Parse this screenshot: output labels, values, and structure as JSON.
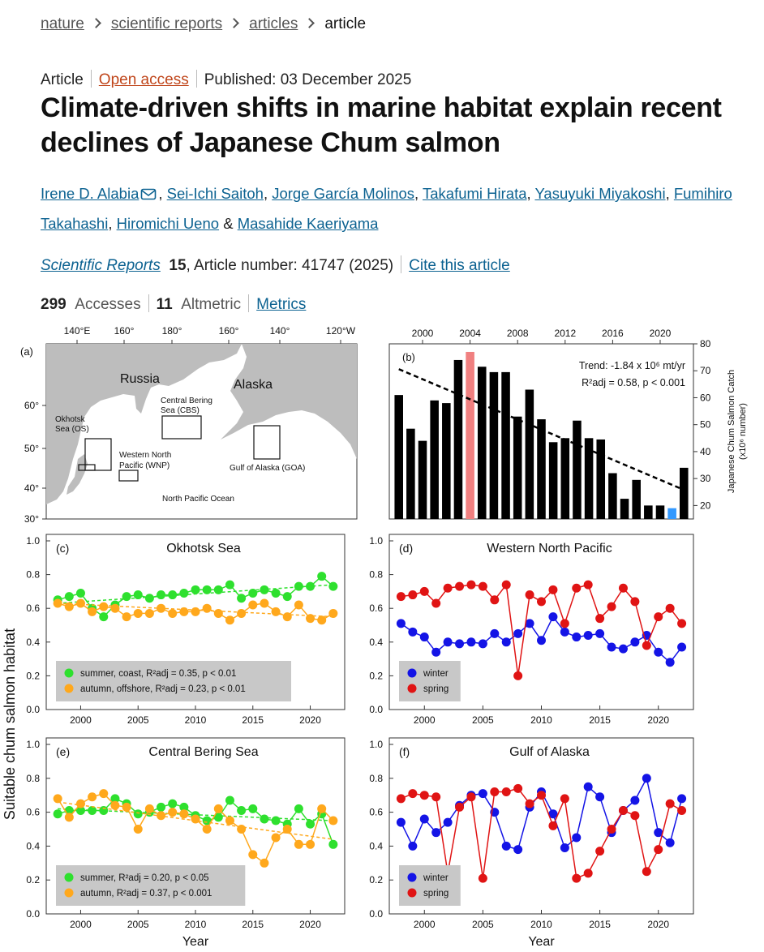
{
  "breadcrumb": [
    "nature",
    "scientific reports",
    "articles",
    "article"
  ],
  "article_meta": {
    "type": "Article",
    "access": "Open access",
    "published": "Published: 03 December 2025"
  },
  "title": "Climate-driven shifts in marine habitat explain recent declines of Japanese Chum salmon",
  "authors": [
    "Irene D. Alabia",
    "Sei-Ichi Saitoh",
    "Jorge García Molinos",
    "Takafumi Hirata",
    "Yasuyuki Miyakoshi",
    "Fumihiro Takahashi",
    "Hiromichi Ueno",
    "Masahide Kaeriyama"
  ],
  "separators": {
    "list": ",",
    "last": "&"
  },
  "citation": {
    "journal": "Scientific Reports",
    "volume": "15",
    "article_number": ", Article number: 41747 (2025)",
    "cite": "Cite this article"
  },
  "metrics": {
    "accesses": "299",
    "accesses_label": "Accesses",
    "altmetric": "11",
    "altmetric_label": "Altmetric",
    "link": "Metrics"
  },
  "figure": {
    "ylabel": "Suitable chum salmon habitat",
    "map": {
      "panel": "(a)",
      "xticks": [
        "140°E",
        "160°",
        "180°",
        "160°",
        "140°",
        "120°W"
      ],
      "yticks": [
        "60°",
        "50°",
        "40°",
        "30°"
      ],
      "labels": {
        "russia": "Russia",
        "alaska": "Alaska",
        "os": [
          "Okhotsk",
          "Sea (OS)"
        ],
        "cbs": [
          "Central Bering",
          "Sea (CBS)"
        ],
        "wnp": [
          "Western North",
          "Pacific (WNP)"
        ],
        "goa": "Gulf of Alaska (GOA)",
        "ocean": "North Pacific Ocean"
      }
    }
  },
  "chart_data": [
    {
      "type": "bar",
      "panel": "(b)",
      "x": [
        1998,
        1999,
        2000,
        2001,
        2002,
        2003,
        2004,
        2005,
        2006,
        2007,
        2008,
        2009,
        2010,
        2011,
        2012,
        2013,
        2014,
        2015,
        2016,
        2017,
        2018,
        2019,
        2020,
        2021,
        2022
      ],
      "values": [
        61,
        48.5,
        44,
        59,
        58,
        74,
        77,
        71.5,
        69.5,
        69.5,
        53,
        63,
        52,
        43.5,
        45,
        51.5,
        45,
        44.5,
        32,
        22.5,
        29.5,
        20,
        20,
        19,
        34
      ],
      "colors": [
        "#000000",
        "#000000",
        "#000000",
        "#000000",
        "#000000",
        "#000000",
        "#f08080",
        "#000000",
        "#000000",
        "#000000",
        "#000000",
        "#000000",
        "#000000",
        "#000000",
        "#000000",
        "#000000",
        "#000000",
        "#000000",
        "#000000",
        "#000000",
        "#000000",
        "#000000",
        "#000000",
        "#3399ff",
        "#000000"
      ],
      "xlim": [
        1997.2,
        2022.8
      ],
      "xticks": [
        2000,
        2004,
        2008,
        2012,
        2016,
        2020
      ],
      "ylim": [
        15,
        80
      ],
      "yticks": [
        20,
        30,
        40,
        50,
        60,
        70,
        80
      ],
      "yaxis_side": "right",
      "xaxis_side": "top",
      "ylabel": [
        "Japanese Chum Salmon Catch",
        "(x10⁶ number)"
      ],
      "trend": {
        "x": [
          1998,
          2022
        ],
        "values": [
          70.6,
          25.8
        ],
        "color": "#000000"
      },
      "trend_label": "Trend: -1.84 x 10⁶ mt/yr",
      "fit_label": "R²adj = 0.58, p < 0.001"
    },
    {
      "type": "line",
      "panel": "(c)",
      "title": "Okhotsk Sea",
      "x": [
        1998,
        1999,
        2000,
        2001,
        2002,
        2003,
        2004,
        2005,
        2006,
        2007,
        2008,
        2009,
        2010,
        2011,
        2012,
        2013,
        2014,
        2015,
        2016,
        2017,
        2018,
        2019,
        2020,
        2021,
        2022
      ],
      "xlim": [
        1997,
        2023
      ],
      "xticks": [
        2000,
        2005,
        2010,
        2015,
        2020
      ],
      "ylim": [
        0,
        1
      ],
      "yticks": [
        {
          "value": 0,
          "label": "0.0"
        },
        0.2,
        0.4,
        0.6,
        0.8,
        {
          "value": 1,
          "label": "1.0"
        }
      ],
      "legend": "lower left",
      "series": [
        {
          "name": "summer, coast, R²adj = 0.35, p < 0.01",
          "color": "#2ee02e",
          "values": [
            0.65,
            0.67,
            0.69,
            0.6,
            0.55,
            0.62,
            0.67,
            0.68,
            0.66,
            0.68,
            0.68,
            0.69,
            0.71,
            0.71,
            0.71,
            0.74,
            0.66,
            0.69,
            0.71,
            0.69,
            0.67,
            0.73,
            0.73,
            0.79,
            0.73
          ],
          "trend": [
            0.63,
            0.74
          ]
        },
        {
          "name": "autumn, offshore, R²adj = 0.23, p < 0.01",
          "color": "#ffa81c",
          "values": [
            0.63,
            0.61,
            0.63,
            0.58,
            0.61,
            0.6,
            0.55,
            0.57,
            0.57,
            0.6,
            0.57,
            0.58,
            0.58,
            0.6,
            0.57,
            0.53,
            0.57,
            0.62,
            0.63,
            0.58,
            0.55,
            0.62,
            0.54,
            0.53,
            0.57
          ],
          "trend": [
            0.63,
            0.55
          ]
        }
      ]
    },
    {
      "type": "line",
      "panel": "(d)",
      "title": "Western North Pacific",
      "x": [
        1998,
        1999,
        2000,
        2001,
        2002,
        2003,
        2004,
        2005,
        2006,
        2007,
        2008,
        2009,
        2010,
        2011,
        2012,
        2013,
        2014,
        2015,
        2016,
        2017,
        2018,
        2019,
        2020,
        2021,
        2022
      ],
      "xlim": [
        1997,
        2023
      ],
      "xticks": [
        2000,
        2005,
        2010,
        2015,
        2020
      ],
      "ylim": [
        0,
        1
      ],
      "yticks": [
        {
          "value": 0,
          "label": "0.0"
        },
        0.2,
        0.4,
        0.6,
        0.8,
        {
          "value": 1,
          "label": "1.0"
        }
      ],
      "legend": "lower left",
      "series": [
        {
          "name": "winter",
          "color": "#1414e6",
          "values": [
            0.51,
            0.46,
            0.43,
            0.34,
            0.4,
            0.39,
            0.4,
            0.39,
            0.45,
            0.4,
            0.45,
            0.51,
            0.41,
            0.55,
            0.46,
            0.43,
            0.44,
            0.45,
            0.37,
            0.36,
            0.4,
            0.44,
            0.34,
            0.28,
            0.37
          ]
        },
        {
          "name": "spring",
          "color": "#e01414",
          "values": [
            0.67,
            0.68,
            0.7,
            0.63,
            0.72,
            0.73,
            0.74,
            0.73,
            0.65,
            0.74,
            0.2,
            0.68,
            0.64,
            0.71,
            0.51,
            0.72,
            0.74,
            0.54,
            0.61,
            0.72,
            0.64,
            0.38,
            0.55,
            0.6,
            0.51
          ]
        }
      ]
    },
    {
      "type": "line",
      "panel": "(e)",
      "title": "Central Bering Sea",
      "xlabel": "Year",
      "x": [
        1998,
        1999,
        2000,
        2001,
        2002,
        2003,
        2004,
        2005,
        2006,
        2007,
        2008,
        2009,
        2010,
        2011,
        2012,
        2013,
        2014,
        2015,
        2016,
        2017,
        2018,
        2019,
        2020,
        2021,
        2022
      ],
      "xlim": [
        1997,
        2023
      ],
      "xticks": [
        2000,
        2005,
        2010,
        2015,
        2020
      ],
      "ylim": [
        0,
        1
      ],
      "yticks": [
        {
          "value": 0,
          "label": "0.0"
        },
        0.2,
        0.4,
        0.6,
        0.8,
        {
          "value": 1,
          "label": "1.0"
        }
      ],
      "legend": "lower left",
      "series": [
        {
          "name": "summer, R²adj = 0.20, p < 0.05",
          "color": "#2ee02e",
          "values": [
            0.59,
            0.61,
            0.61,
            0.61,
            0.61,
            0.68,
            0.65,
            0.59,
            0.6,
            0.63,
            0.65,
            0.63,
            0.58,
            0.55,
            0.57,
            0.67,
            0.61,
            0.62,
            0.56,
            0.55,
            0.53,
            0.62,
            0.53,
            0.59,
            0.41
          ],
          "trend": [
            0.62,
            0.55
          ]
        },
        {
          "name": "autumn, R²adj = 0.37, p < 0.001",
          "color": "#ffa81c",
          "values": [
            0.68,
            0.57,
            0.65,
            0.69,
            0.71,
            0.64,
            0.63,
            0.5,
            0.62,
            0.58,
            0.6,
            0.59,
            0.56,
            0.5,
            0.62,
            0.55,
            0.5,
            0.35,
            0.3,
            0.45,
            0.5,
            0.41,
            0.41,
            0.62,
            0.55
          ],
          "trend": [
            0.66,
            0.44
          ]
        }
      ]
    },
    {
      "type": "line",
      "panel": "(f)",
      "title": "Gulf of Alaska",
      "xlabel": "Year",
      "x": [
        1998,
        1999,
        2000,
        2001,
        2002,
        2003,
        2004,
        2005,
        2006,
        2007,
        2008,
        2009,
        2010,
        2011,
        2012,
        2013,
        2014,
        2015,
        2016,
        2017,
        2018,
        2019,
        2020,
        2021,
        2022
      ],
      "xlim": [
        1997,
        2023
      ],
      "xticks": [
        2000,
        2005,
        2010,
        2015,
        2020
      ],
      "ylim": [
        0,
        1
      ],
      "yticks": [
        {
          "value": 0,
          "label": "0.0"
        },
        0.2,
        0.4,
        0.6,
        0.8,
        {
          "value": 1,
          "label": "1.0"
        }
      ],
      "legend": "lower left",
      "series": [
        {
          "name": "winter",
          "color": "#1414e6",
          "values": [
            0.54,
            0.4,
            0.56,
            0.48,
            0.54,
            0.64,
            0.7,
            0.71,
            0.6,
            0.4,
            0.38,
            0.63,
            0.72,
            0.59,
            0.39,
            0.45,
            0.75,
            0.69,
            0.48,
            0.61,
            0.67,
            0.8,
            0.48,
            0.42,
            0.68
          ]
        },
        {
          "name": "spring",
          "color": "#e01414",
          "values": [
            0.68,
            0.71,
            0.7,
            0.69,
            0.24,
            0.63,
            0.69,
            0.21,
            0.72,
            0.72,
            0.74,
            0.65,
            0.7,
            0.52,
            0.68,
            0.21,
            0.24,
            0.37,
            0.5,
            0.61,
            0.58,
            0.25,
            0.38,
            0.65,
            0.61
          ]
        }
      ]
    }
  ]
}
